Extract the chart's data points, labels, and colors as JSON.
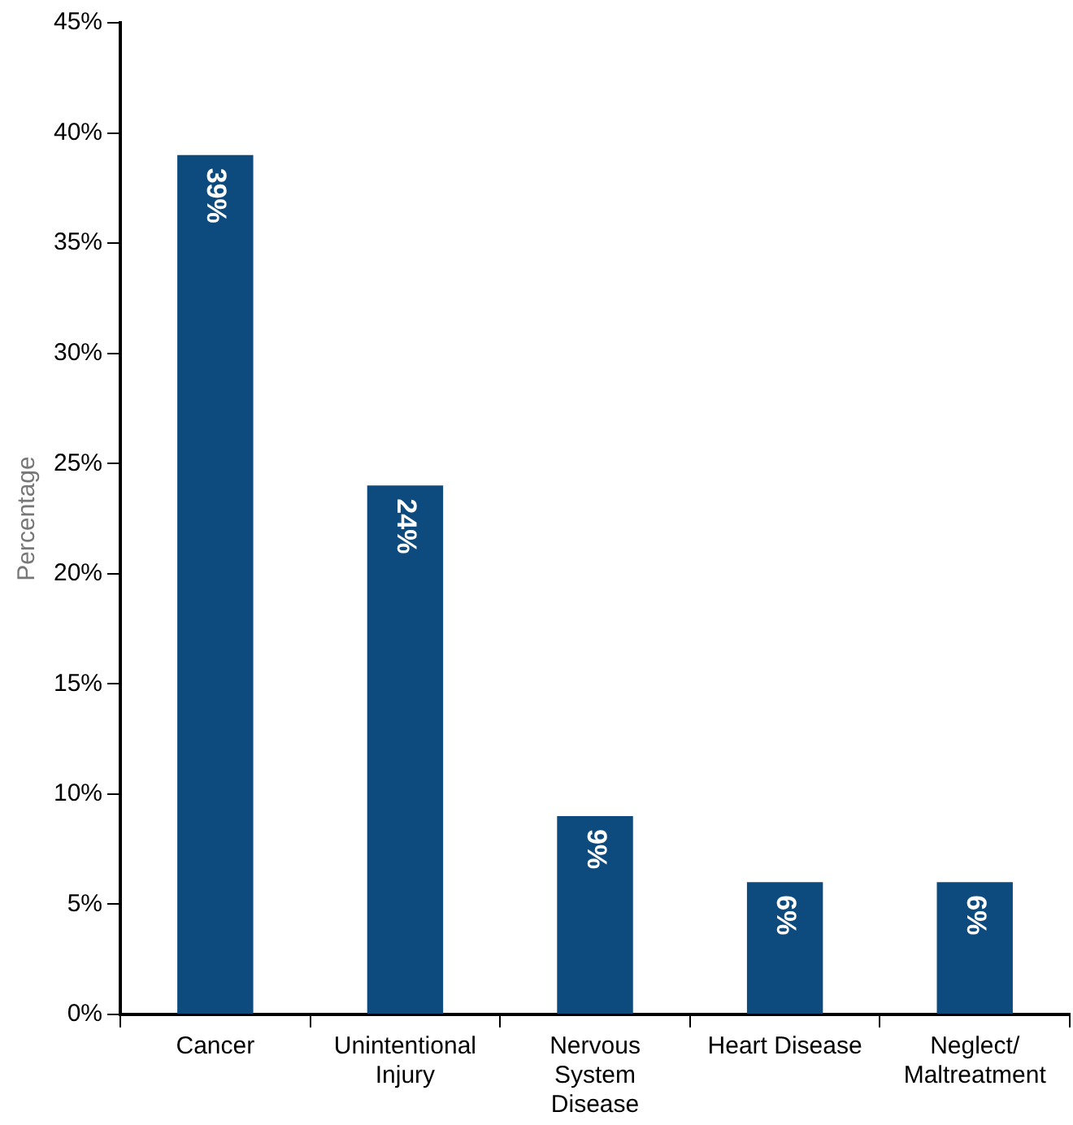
{
  "chart_data": {
    "type": "bar",
    "ylabel": "Percentage",
    "categories": [
      "Cancer",
      "Unintentional Injury",
      "Nervous System Disease",
      "Heart Disease",
      "Neglect/ Maltreatment"
    ],
    "values": [
      39,
      24,
      9,
      6,
      6
    ],
    "value_labels": [
      "39%",
      "24%",
      "9%",
      "6%",
      "6%"
    ],
    "color": "#0d4a7e",
    "ylim": [
      0,
      45
    ],
    "yticks": [
      {
        "value": 0,
        "label": "0%"
      },
      {
        "value": 5,
        "label": "5%"
      },
      {
        "value": 10,
        "label": "10%"
      },
      {
        "value": 15,
        "label": "15%"
      },
      {
        "value": 20,
        "label": "20%"
      },
      {
        "value": 25,
        "label": "25%"
      },
      {
        "value": 30,
        "label": "30%"
      },
      {
        "value": 35,
        "label": "35%"
      },
      {
        "value": 40,
        "label": "40%"
      },
      {
        "value": 45,
        "label": "45%"
      }
    ],
    "grid": false,
    "legend": false
  }
}
